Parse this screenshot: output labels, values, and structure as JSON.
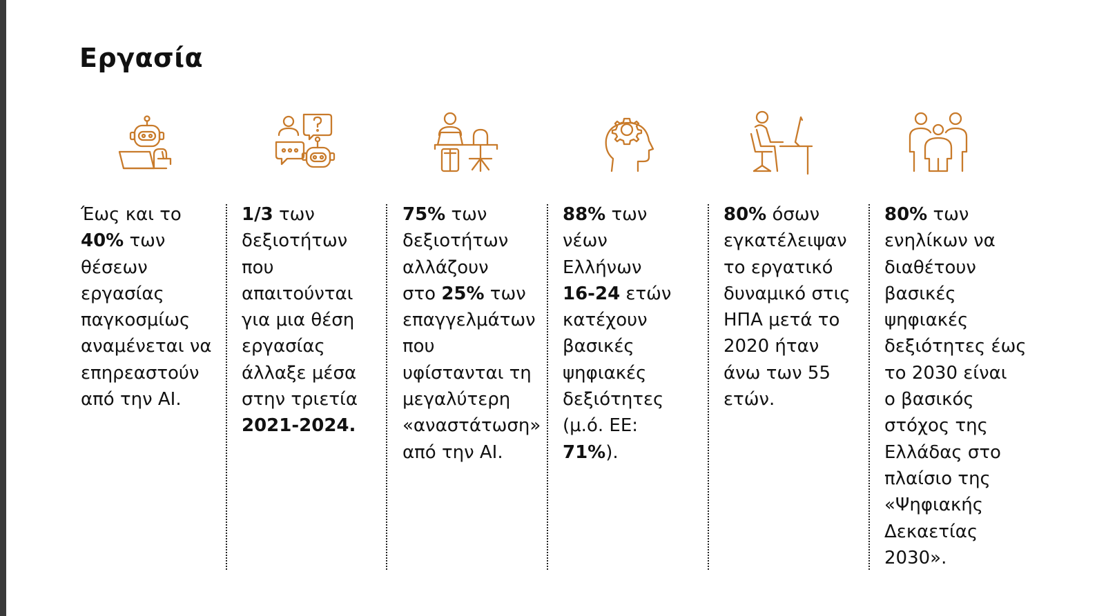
{
  "page": {
    "title": "Εργασία",
    "accent_color": "#c87a2a"
  },
  "columns": [
    {
      "icon": "robot-laptop-icon",
      "lines": [
        [
          {
            "text": "Έως και το"
          }
        ],
        [
          {
            "text": "40%",
            "bold": true
          },
          {
            "text": " των"
          }
        ],
        [
          {
            "text": "θέσεων"
          }
        ],
        [
          {
            "text": "εργασίας"
          }
        ],
        [
          {
            "text": "παγκοσμίως"
          }
        ],
        [
          {
            "text": "αναμένεται να"
          }
        ],
        [
          {
            "text": "επηρεαστούν"
          }
        ],
        [
          {
            "text": "από την AI."
          }
        ]
      ]
    },
    {
      "icon": "people-robot-chat-icon",
      "lines": [
        [
          {
            "text": "1/3",
            "bold": true
          },
          {
            "text": " των"
          }
        ],
        [
          {
            "text": "δεξιοτήτων"
          }
        ],
        [
          {
            "text": "που"
          }
        ],
        [
          {
            "text": "απαιτούνται"
          }
        ],
        [
          {
            "text": "για μια θέση"
          }
        ],
        [
          {
            "text": "εργασίας"
          }
        ],
        [
          {
            "text": "άλλαξε μέσα"
          }
        ],
        [
          {
            "text": "στην τριετία"
          }
        ],
        [
          {
            "text": "2021-2024.",
            "bold": true
          }
        ]
      ]
    },
    {
      "icon": "person-at-desk-icon",
      "lines": [
        [
          {
            "text": "75%",
            "bold": true
          },
          {
            "text": " των"
          }
        ],
        [
          {
            "text": "δεξιοτήτων"
          }
        ],
        [
          {
            "text": "αλλάζουν"
          }
        ],
        [
          {
            "text": "στο "
          },
          {
            "text": "25%",
            "bold": true
          },
          {
            "text": " των"
          }
        ],
        [
          {
            "text": "επαγγελμάτων"
          }
        ],
        [
          {
            "text": "που"
          }
        ],
        [
          {
            "text": "υφίστανται τη"
          }
        ],
        [
          {
            "text": "μεγαλύτερη"
          }
        ],
        [
          {
            "text": "«αναστάτωση»"
          }
        ],
        [
          {
            "text": "από την AI."
          }
        ]
      ]
    },
    {
      "icon": "head-gear-icon",
      "lines": [
        [
          {
            "text": "88%",
            "bold": true
          },
          {
            "text": " των"
          }
        ],
        [
          {
            "text": "νέων"
          }
        ],
        [
          {
            "text": "Ελλήνων"
          }
        ],
        [
          {
            "text": "16-24",
            "bold": true
          },
          {
            "text": " ετών"
          }
        ],
        [
          {
            "text": "κατέχουν"
          }
        ],
        [
          {
            "text": "βασικές"
          }
        ],
        [
          {
            "text": "ψηφιακές"
          }
        ],
        [
          {
            "text": "δεξιότητες"
          }
        ],
        [
          {
            "text": "(μ.ό. ΕΕ:"
          }
        ],
        [
          {
            "text": "71%",
            "bold": true
          },
          {
            "text": ")."
          }
        ]
      ]
    },
    {
      "icon": "person-at-computer-icon",
      "lines": [
        [
          {
            "text": "80%",
            "bold": true
          },
          {
            "text": " όσων"
          }
        ],
        [
          {
            "text": "εγκατέλειψαν"
          }
        ],
        [
          {
            "text": "το εργατικό"
          }
        ],
        [
          {
            "text": "δυναμικό στις"
          }
        ],
        [
          {
            "text": "ΗΠΑ μετά το"
          }
        ],
        [
          {
            "text": "2020 ήταν"
          }
        ],
        [
          {
            "text": "άνω των 55"
          }
        ],
        [
          {
            "text": "ετών."
          }
        ]
      ]
    },
    {
      "icon": "family-group-icon",
      "lines": [
        [
          {
            "text": "80%",
            "bold": true
          },
          {
            "text": " των"
          }
        ],
        [
          {
            "text": "ενηλίκων να"
          }
        ],
        [
          {
            "text": "διαθέτουν"
          }
        ],
        [
          {
            "text": "βασικές"
          }
        ],
        [
          {
            "text": "ψηφιακές"
          }
        ],
        [
          {
            "text": "δεξιότητες έως"
          }
        ],
        [
          {
            "text": "το 2030 είναι"
          }
        ],
        [
          {
            "text": "ο βασικός"
          }
        ],
        [
          {
            "text": "στόχος της"
          }
        ],
        [
          {
            "text": "Ελλάδας στο"
          }
        ],
        [
          {
            "text": "πλαίσιο της"
          }
        ],
        [
          {
            "text": "«Ψηφιακής"
          }
        ],
        [
          {
            "text": "Δεκαετίας"
          }
        ],
        [
          {
            "text": "2030»."
          }
        ]
      ]
    }
  ]
}
